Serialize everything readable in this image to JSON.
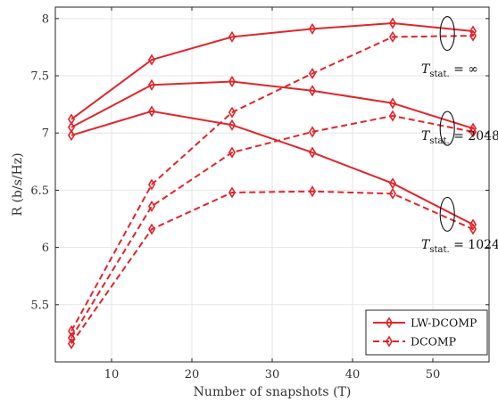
{
  "chart_data": {
    "type": "line",
    "xlabel": "Number of snapshots (T)",
    "ylabel": "R (b/s/Hz)",
    "xlim": [
      3,
      57
    ],
    "ylim": [
      5.0,
      8.1
    ],
    "x_ticks": [
      10,
      20,
      30,
      40,
      50
    ],
    "y_ticks": [
      5.5,
      6,
      6.5,
      7,
      7.5,
      8
    ],
    "grid": true,
    "legend_position": "bottom-right",
    "x": [
      5,
      15,
      25,
      35,
      45,
      55
    ],
    "series": [
      {
        "group": "inf",
        "method": "LW-DCOMP",
        "style": "solid",
        "color": "#e3242b",
        "values": [
          7.12,
          7.64,
          7.84,
          7.91,
          7.96,
          7.89
        ]
      },
      {
        "group": "inf",
        "method": "DCOMP",
        "style": "dashed",
        "color": "#e3242b",
        "values": [
          5.27,
          6.55,
          7.18,
          7.52,
          7.84,
          7.85
        ]
      },
      {
        "group": "2048",
        "method": "LW-DCOMP",
        "style": "solid",
        "color": "#e3242b",
        "values": [
          7.05,
          7.42,
          7.45,
          7.37,
          7.26,
          7.04
        ]
      },
      {
        "group": "2048",
        "method": "DCOMP",
        "style": "dashed",
        "color": "#e3242b",
        "values": [
          5.21,
          6.36,
          6.83,
          7.01,
          7.15,
          7.01
        ]
      },
      {
        "group": "1024",
        "method": "LW-DCOMP",
        "style": "solid",
        "color": "#e3242b",
        "values": [
          6.98,
          7.19,
          7.07,
          6.83,
          6.56,
          6.2
        ]
      },
      {
        "group": "1024",
        "method": "DCOMP",
        "style": "dashed",
        "color": "#e3242b",
        "values": [
          5.16,
          6.16,
          6.48,
          6.49,
          6.47,
          6.16
        ]
      }
    ],
    "annotations": [
      {
        "group": "inf",
        "main": "T",
        "sub": "stat.",
        "rest": " = ∞",
        "ellipse_x": 51.8,
        "ellipse_y": 7.87
      },
      {
        "group": "2048",
        "main": "T",
        "sub": "stat.",
        "rest": " = 2048",
        "ellipse_x": 51.8,
        "ellipse_y": 7.04
      },
      {
        "group": "1024",
        "main": "T",
        "sub": "stat.",
        "rest": " = 1024",
        "ellipse_x": 51.8,
        "ellipse_y": 6.29
      }
    ],
    "legend": [
      {
        "label": "LW-DCOMP",
        "style": "solid"
      },
      {
        "label": "DCOMP",
        "style": "dashed"
      }
    ]
  }
}
